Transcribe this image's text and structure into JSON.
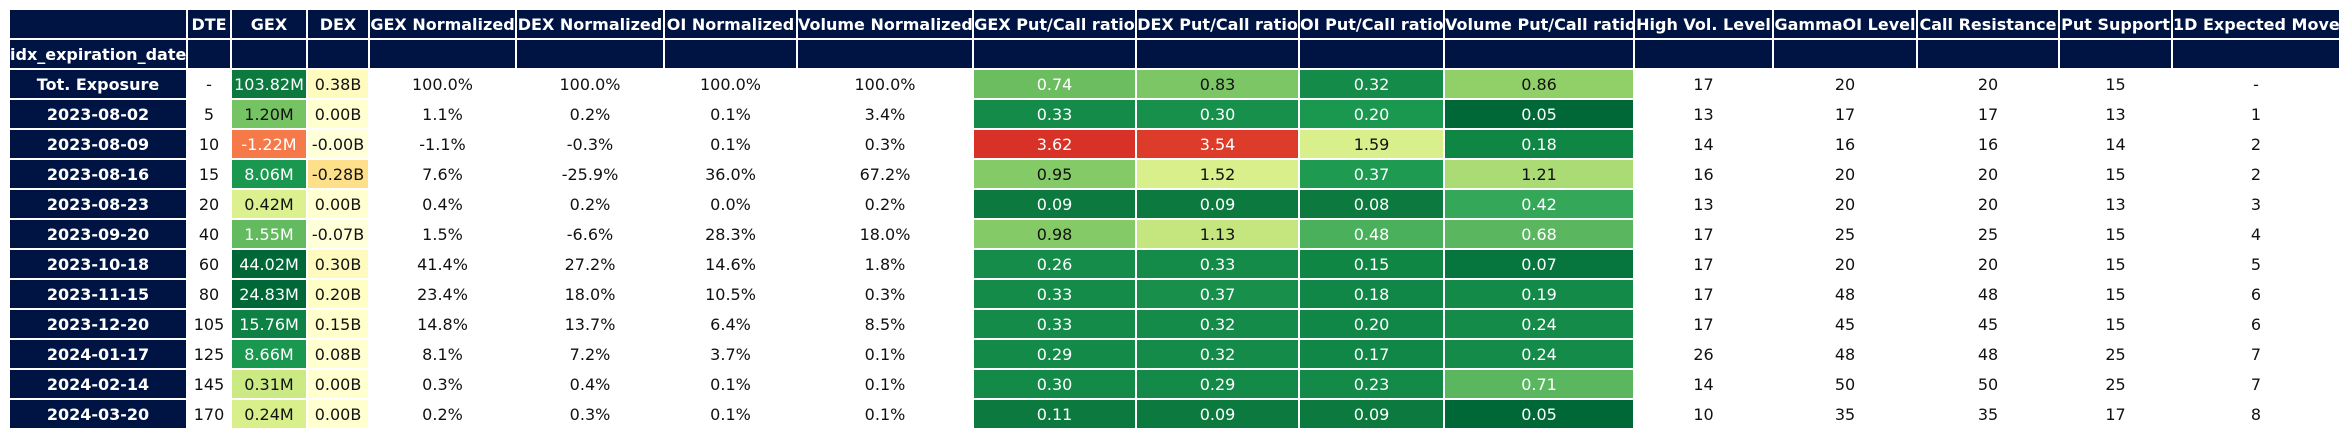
{
  "chart_data": {
    "type": "table",
    "index_name": "idx_expiration_date",
    "columns": [
      "DTE",
      "GEX",
      "DEX",
      "GEX Normalized",
      "DEX Normalized",
      "OI Normalized",
      "Volume Normalized",
      "GEX Put/Call ratio",
      "DEX Put/Call ratio",
      "OI Put/Call ratio",
      "Volume Put/Call ratio",
      "High Vol. Level",
      "GammaOI Level",
      "Call Resistance",
      "Put Support",
      "1D Expected Move"
    ],
    "rows": [
      {
        "label": "Tot. Exposure",
        "cells": [
          "-",
          "103.82M",
          "0.38B",
          "100.0%",
          "100.0%",
          "100.0%",
          "100.0%",
          "0.74",
          "0.83",
          "0.32",
          "0.86",
          "17",
          "20",
          "20",
          "15",
          "-"
        ]
      },
      {
        "label": "2023-08-02",
        "cells": [
          "5",
          "1.20M",
          "0.00B",
          "1.1%",
          "0.2%",
          "0.1%",
          "3.4%",
          "0.33",
          "0.30",
          "0.20",
          "0.05",
          "13",
          "17",
          "17",
          "13",
          "1"
        ]
      },
      {
        "label": "2023-08-09",
        "cells": [
          "10",
          "-1.22M",
          "-0.00B",
          "-1.1%",
          "-0.3%",
          "0.1%",
          "0.3%",
          "3.62",
          "3.54",
          "1.59",
          "0.18",
          "14",
          "16",
          "16",
          "14",
          "2"
        ]
      },
      {
        "label": "2023-08-16",
        "cells": [
          "15",
          "8.06M",
          "-0.28B",
          "7.6%",
          "-25.9%",
          "36.0%",
          "67.2%",
          "0.95",
          "1.52",
          "0.37",
          "1.21",
          "16",
          "20",
          "20",
          "15",
          "2"
        ]
      },
      {
        "label": "2023-08-23",
        "cells": [
          "20",
          "0.42M",
          "0.00B",
          "0.4%",
          "0.2%",
          "0.0%",
          "0.2%",
          "0.09",
          "0.09",
          "0.08",
          "0.42",
          "13",
          "20",
          "20",
          "13",
          "3"
        ]
      },
      {
        "label": "2023-09-20",
        "cells": [
          "40",
          "1.55M",
          "-0.07B",
          "1.5%",
          "-6.6%",
          "28.3%",
          "18.0%",
          "0.98",
          "1.13",
          "0.48",
          "0.68",
          "17",
          "25",
          "25",
          "15",
          "4"
        ]
      },
      {
        "label": "2023-10-18",
        "cells": [
          "60",
          "44.02M",
          "0.30B",
          "41.4%",
          "27.2%",
          "14.6%",
          "1.8%",
          "0.26",
          "0.33",
          "0.15",
          "0.07",
          "17",
          "20",
          "20",
          "15",
          "5"
        ]
      },
      {
        "label": "2023-11-15",
        "cells": [
          "80",
          "24.83M",
          "0.20B",
          "23.4%",
          "18.0%",
          "10.5%",
          "0.3%",
          "0.33",
          "0.37",
          "0.18",
          "0.19",
          "17",
          "48",
          "48",
          "15",
          "6"
        ]
      },
      {
        "label": "2023-12-20",
        "cells": [
          "105",
          "15.76M",
          "0.15B",
          "14.8%",
          "13.7%",
          "6.4%",
          "8.5%",
          "0.33",
          "0.32",
          "0.20",
          "0.24",
          "17",
          "45",
          "45",
          "15",
          "6"
        ]
      },
      {
        "label": "2024-01-17",
        "cells": [
          "125",
          "8.66M",
          "0.08B",
          "8.1%",
          "7.2%",
          "3.7%",
          "0.1%",
          "0.29",
          "0.32",
          "0.17",
          "0.24",
          "26",
          "48",
          "48",
          "25",
          "7"
        ]
      },
      {
        "label": "2024-02-14",
        "cells": [
          "145",
          "0.31M",
          "0.00B",
          "0.3%",
          "0.4%",
          "0.1%",
          "0.1%",
          "0.30",
          "0.29",
          "0.23",
          "0.71",
          "14",
          "50",
          "50",
          "25",
          "7"
        ]
      },
      {
        "label": "2024-03-20",
        "cells": [
          "170",
          "0.24M",
          "0.00B",
          "0.2%",
          "0.3%",
          "0.1%",
          "0.1%",
          "0.11",
          "0.09",
          "0.09",
          "0.05",
          "10",
          "35",
          "35",
          "17",
          "8"
        ]
      }
    ],
    "cell_colors": [
      [
        null,
        "#0c7a3e",
        "#fffabe",
        null,
        null,
        null,
        null,
        "#6bbd5f",
        "#7cc666",
        "#148b48",
        "#91d068",
        null,
        null,
        null,
        null,
        null
      ],
      [
        null,
        "#76c364",
        "#ffffd0",
        null,
        null,
        null,
        null,
        "#148b48",
        "#17904b",
        "#1a9850",
        "#006837",
        null,
        null,
        null,
        null,
        null
      ],
      [
        null,
        "#f67a49",
        "#ffffd9",
        null,
        null,
        null,
        null,
        "#d83127",
        "#de3c2b",
        "#d9ef8b",
        "#108645",
        null,
        null,
        null,
        null,
        null
      ],
      [
        null,
        "#1a9850",
        "#fee08b",
        null,
        null,
        null,
        null,
        "#84ca66",
        "#d9ef8b",
        "#1e9a51",
        "#aadb74",
        null,
        null,
        null,
        null,
        null
      ],
      [
        null,
        "#dcf08f",
        "#ffffd0",
        null,
        null,
        null,
        null,
        "#0c7a3e",
        "#0c7a3e",
        "#0c7a3e",
        "#35a758",
        null,
        null,
        null,
        null,
        null
      ],
      [
        null,
        "#63ba5f",
        "#ffffd9",
        null,
        null,
        null,
        null,
        "#84ca66",
        "#c5e67e",
        "#4bb05c",
        "#5ab760",
        null,
        null,
        null,
        null,
        null
      ],
      [
        null,
        "#006837",
        "#fffabe",
        null,
        null,
        null,
        null,
        "#158c49",
        "#148b48",
        "#108645",
        "#07753e",
        null,
        null,
        null,
        null,
        null
      ],
      [
        null,
        "#006837",
        "#ffffc5",
        null,
        null,
        null,
        null,
        "#148b48",
        "#198f4c",
        "#118747",
        "#138a48",
        null,
        null,
        null,
        null,
        null
      ],
      [
        null,
        "#0e8245",
        "#ffffcb",
        null,
        null,
        null,
        null,
        "#148b48",
        "#148b48",
        "#118747",
        "#148b48",
        null,
        null,
        null,
        null,
        null
      ],
      [
        null,
        "#1a9850",
        "#ffffd0",
        null,
        null,
        null,
        null,
        "#138a48",
        "#148b48",
        "#118747",
        "#148b48",
        null,
        null,
        null,
        null,
        null
      ],
      [
        null,
        "#ccea83",
        "#ffffd0",
        null,
        null,
        null,
        null,
        "#138a48",
        "#138a48",
        "#138a48",
        "#5ab760",
        null,
        null,
        null,
        null,
        null
      ],
      [
        null,
        "#d9ef8b",
        "#ffffd0",
        null,
        null,
        null,
        null,
        "#0c7a3e",
        "#0c7a3e",
        "#0c7a3e",
        "#006837",
        null,
        null,
        null,
        null,
        null
      ]
    ]
  }
}
